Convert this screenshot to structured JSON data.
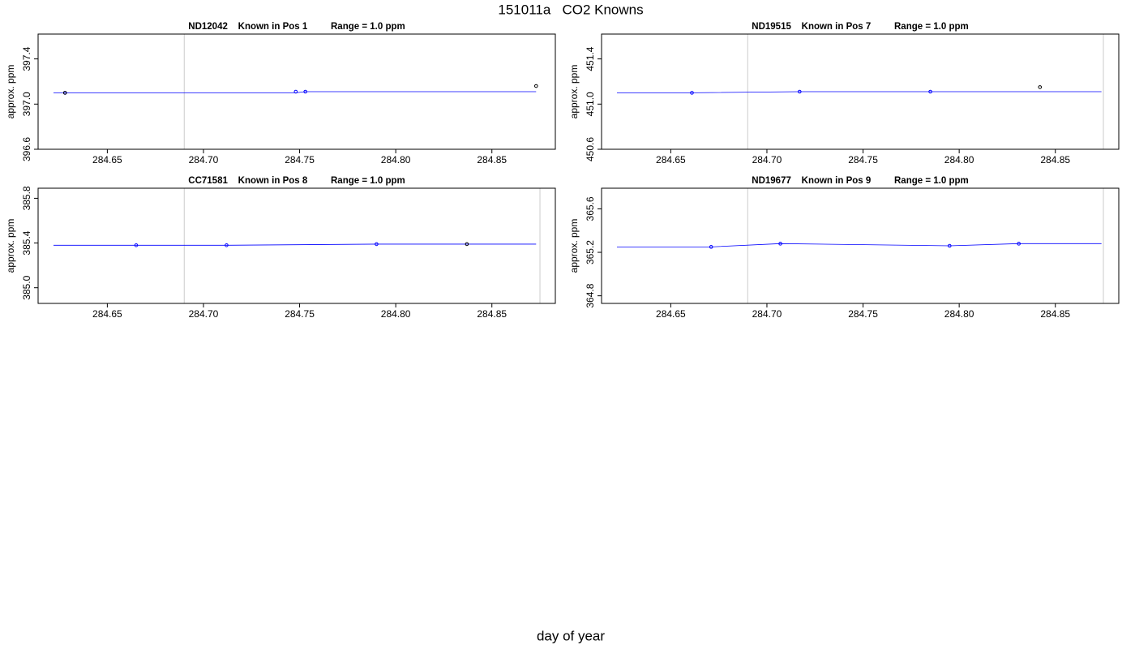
{
  "title": "151011a   CO2 Knowns",
  "xlabel": "day of year",
  "chart_data": [
    {
      "type": "scatter",
      "title": "ND12042    Known in Pos 1         Range = 1.0 ppm",
      "ylabel": "approx. ppm",
      "xlim": [
        284.614,
        284.883
      ],
      "ylim": [
        396.6,
        397.62
      ],
      "xticks": [
        284.65,
        {
          "value": 284.7,
          "label": "284.70"
        },
        284.75,
        {
          "value": 284.8,
          "label": "284.80"
        },
        284.85
      ],
      "yticks": [
        396.6,
        {
          "value": 397,
          "label": "397.0"
        },
        397.4
      ],
      "vlines": [
        284.69
      ],
      "vline_color": "#cccccc",
      "series": [
        {
          "mode": "line",
          "color": "#0000ff",
          "x": [
            284.622,
            284.628,
            284.748,
            284.753,
            284.873
          ],
          "values": [
            397.1,
            397.1,
            397.1,
            397.11,
            397.11
          ]
        },
        {
          "mode": "points",
          "color": "#0000ff",
          "x": [
            284.628,
            284.748,
            284.753
          ],
          "values": [
            397.1,
            397.11,
            397.11
          ]
        },
        {
          "mode": "points",
          "color": "#000000",
          "x": [
            284.628,
            284.873
          ],
          "values": [
            397.1,
            397.16
          ]
        }
      ]
    },
    {
      "type": "scatter",
      "title": "ND19515    Known in Pos 7         Range = 1.0 ppm",
      "ylabel": "approx. ppm",
      "xlim": [
        284.614,
        284.883
      ],
      "ylim": [
        450.6,
        451.62
      ],
      "xticks": [
        284.65,
        {
          "value": 284.7,
          "label": "284.70"
        },
        284.75,
        {
          "value": 284.8,
          "label": "284.80"
        },
        284.85
      ],
      "yticks": [
        450.6,
        {
          "value": 451,
          "label": "451.0"
        },
        451.4
      ],
      "vlines": [
        284.69,
        284.875
      ],
      "vline_color": "#cccccc",
      "series": [
        {
          "mode": "line",
          "color": "#0000ff",
          "x": [
            284.622,
            284.661,
            284.717,
            284.785,
            284.874
          ],
          "values": [
            451.1,
            451.1,
            451.11,
            451.11,
            451.11
          ]
        },
        {
          "mode": "points",
          "color": "#0000ff",
          "x": [
            284.661,
            284.717,
            284.785
          ],
          "values": [
            451.1,
            451.11,
            451.11
          ]
        },
        {
          "mode": "points",
          "color": "#000000",
          "x": [
            284.842
          ],
          "values": [
            451.15
          ]
        }
      ]
    },
    {
      "type": "scatter",
      "title": "CC71581    Known in Pos 8         Range = 1.0 ppm",
      "ylabel": "approx. ppm",
      "xlim": [
        284.614,
        284.883
      ],
      "ylim": [
        384.86,
        385.89
      ],
      "xticks": [
        284.65,
        {
          "value": 284.7,
          "label": "284.70"
        },
        284.75,
        {
          "value": 284.8,
          "label": "284.80"
        },
        284.85
      ],
      "yticks": [
        {
          "value": 385,
          "label": "385.0"
        },
        385.4,
        385.8
      ],
      "vlines": [
        284.69,
        284.875
      ],
      "vline_color": "#cccccc",
      "series": [
        {
          "mode": "line",
          "color": "#0000ff",
          "x": [
            284.622,
            284.665,
            284.712,
            284.79,
            284.837,
            284.873
          ],
          "values": [
            385.38,
            385.38,
            385.38,
            385.39,
            385.39,
            385.39
          ]
        },
        {
          "mode": "points",
          "color": "#0000ff",
          "x": [
            284.665,
            284.712,
            284.79
          ],
          "values": [
            385.38,
            385.38,
            385.39
          ]
        },
        {
          "mode": "points",
          "color": "#000000",
          "x": [
            284.837
          ],
          "values": [
            385.39
          ]
        }
      ]
    },
    {
      "type": "scatter",
      "title": "ND19677    Known in Pos 9         Range = 1.0 ppm",
      "ylabel": "approx. ppm",
      "xlim": [
        284.614,
        284.883
      ],
      "ylim": [
        364.73,
        365.79
      ],
      "xticks": [
        284.65,
        {
          "value": 284.7,
          "label": "284.70"
        },
        284.75,
        {
          "value": 284.8,
          "label": "284.80"
        },
        284.85
      ],
      "yticks": [
        364.8,
        365.2,
        365.6
      ],
      "vlines": [
        284.69,
        284.875
      ],
      "vline_color": "#cccccc",
      "series": [
        {
          "mode": "line",
          "color": "#0000ff",
          "x": [
            284.622,
            284.671,
            284.707,
            284.795,
            284.831,
            284.874
          ],
          "values": [
            365.25,
            365.25,
            365.28,
            365.26,
            365.28,
            365.28
          ]
        },
        {
          "mode": "points",
          "color": "#0000ff",
          "x": [
            284.671,
            284.707,
            284.795,
            284.831
          ],
          "values": [
            365.25,
            365.28,
            365.26,
            365.28
          ]
        }
      ]
    }
  ]
}
